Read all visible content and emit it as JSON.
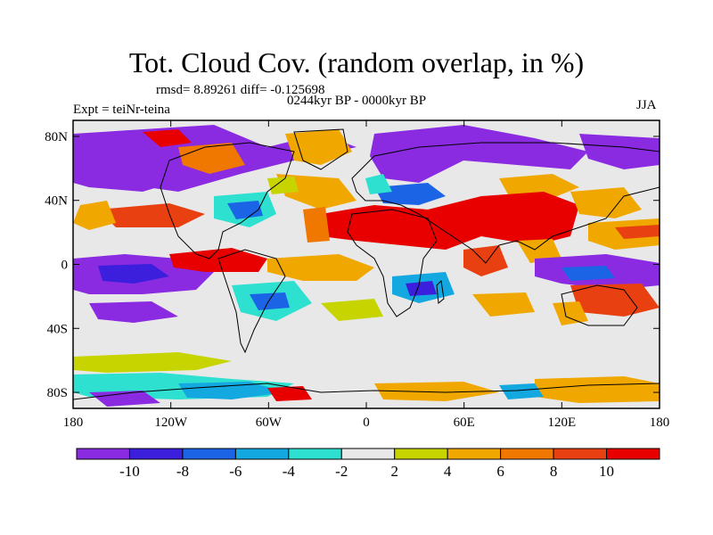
{
  "title": "Tot. Cloud Cov. (random overlap, in %)",
  "stats_line": "rmsd= 8.89261 diff= -0.125698",
  "period": "0244kyr BP - 0000kyr BP",
  "experiment": "Expt = teiNr-teina",
  "season": "JJA",
  "lat_ticks": [
    "80N",
    "40N",
    "0",
    "40S",
    "80S"
  ],
  "lon_ticks": [
    "180",
    "120W",
    "60W",
    "0",
    "60E",
    "120E",
    "180"
  ],
  "colorbar": {
    "labels": [
      "-10",
      "-8",
      "-6",
      "-4",
      "-2",
      "2",
      "4",
      "6",
      "8",
      "10"
    ],
    "colors": [
      "#8a2be2",
      "#3c1fdc",
      "#1c64e6",
      "#14a8e0",
      "#2ee0d0",
      "#e8e8e8",
      "#c8d400",
      "#f0a800",
      "#f07800",
      "#e84010",
      "#e80000"
    ]
  },
  "palette": {
    "purple": "#8a2be2",
    "blue": "#3c1fdc",
    "midblue": "#1c64e6",
    "cyan": "#14a8e0",
    "teal": "#2ee0d0",
    "neutral": "#e8e8e8",
    "yellow": "#c8d400",
    "orange": "#f0a800",
    "darkorange": "#f07800",
    "redorange": "#e84010",
    "red": "#e80000"
  }
}
